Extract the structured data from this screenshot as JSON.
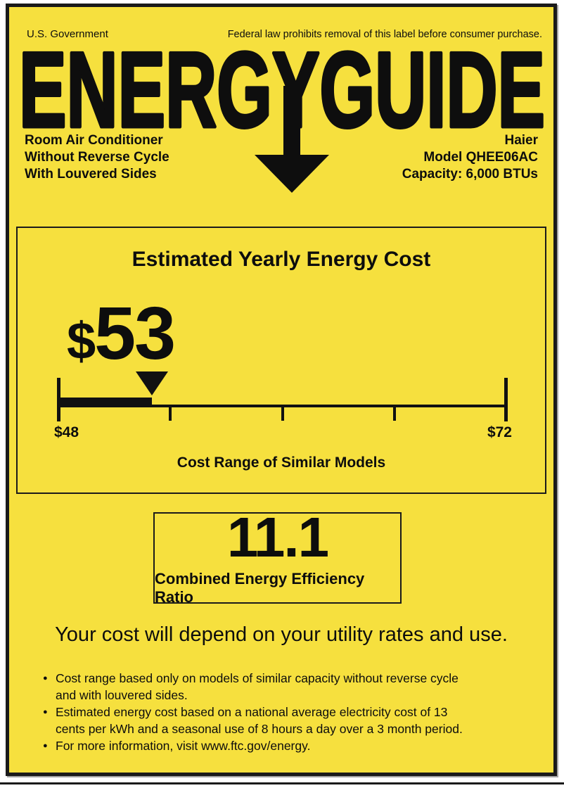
{
  "colors": {
    "label_yellow": "#F6E03E",
    "ink": "#0d0d0d"
  },
  "header": {
    "gov_label": "U.S. Government",
    "federal_notice": "Federal law prohibits removal of this label before consumer purchase.",
    "logo": "ENERGYGUIDE",
    "product": {
      "line1": "Room Air Conditioner",
      "line2": "Without Reverse Cycle",
      "line3": "With Louvered Sides"
    },
    "brand": {
      "name": "Haier",
      "model": "Model QHEE06AC",
      "capacity": "Capacity: 6,000 BTUs"
    }
  },
  "chart_data": {
    "type": "range-scale",
    "title": "Estimated Yearly Energy Cost",
    "marker_label": "$53",
    "marker_currency": "$",
    "marker_digits": "53",
    "marker_value": 53,
    "min": 48,
    "max": 72,
    "min_label": "$48",
    "max_label": "$72",
    "caption": "Cost Range of Similar Models",
    "tick_positions_pct": [
      25,
      50,
      75
    ]
  },
  "ceer": {
    "value": "11.1",
    "label": "Combined Energy Efficiency Ratio"
  },
  "disclaimer": "Your cost will depend on your utility rates and use.",
  "footnotes": [
    "Cost range based only on models of similar capacity without reverse cycle and with louvered sides.",
    "Estimated energy cost based on a national average electricity cost of 13 cents per kWh and a seasonal use of 8 hours a day over a 3 month period.",
    "For more information, visit www.ftc.gov/energy."
  ]
}
